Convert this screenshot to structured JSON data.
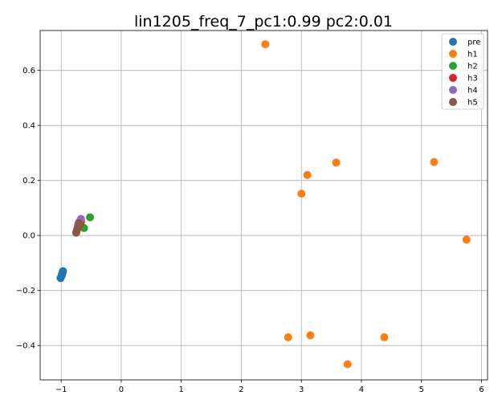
{
  "chart_data": {
    "type": "scatter",
    "title": "lin1205_freq_7_pc1:0.99 pc2:0.01",
    "xlabel": "",
    "ylabel": "",
    "xlim": [
      -1.35,
      6.1
    ],
    "ylim": [
      -0.525,
      0.745
    ],
    "xticks": [
      -1,
      0,
      1,
      2,
      3,
      4,
      5,
      6
    ],
    "yticks": [
      -0.4,
      -0.2,
      0.0,
      0.2,
      0.4,
      0.6
    ],
    "xtick_labels": [
      "−1",
      "0",
      "1",
      "2",
      "3",
      "4",
      "5",
      "6"
    ],
    "ytick_labels": [
      "−0.4",
      "−0.2",
      "0.0",
      "0.2",
      "0.4",
      "0.6"
    ],
    "grid": true,
    "legend_position": "top-right",
    "series": [
      {
        "name": "pre",
        "color": "#1f77b4",
        "points": [
          [
            -1.01,
            -0.155
          ],
          [
            -1.0,
            -0.15
          ],
          [
            -0.99,
            -0.145
          ],
          [
            -0.985,
            -0.14
          ],
          [
            -0.98,
            -0.137
          ],
          [
            -0.975,
            -0.133
          ],
          [
            -0.97,
            -0.13
          ]
        ]
      },
      {
        "name": "h1",
        "color": "#ff7f0e",
        "points": [
          [
            2.4,
            0.695
          ],
          [
            3.58,
            0.265
          ],
          [
            5.21,
            0.267
          ],
          [
            3.1,
            0.22
          ],
          [
            3.0,
            0.152
          ],
          [
            5.75,
            -0.015
          ],
          [
            2.78,
            -0.37
          ],
          [
            3.15,
            -0.363
          ],
          [
            4.38,
            -0.37
          ],
          [
            3.77,
            -0.468
          ]
        ]
      },
      {
        "name": "h2",
        "color": "#2ca02c",
        "points": [
          [
            -0.52,
            0.066
          ],
          [
            -0.62,
            0.027
          ],
          [
            -0.68,
            0.04
          ]
        ]
      },
      {
        "name": "h3",
        "color": "#d62728",
        "points": [
          [
            -0.67,
            0.05
          ],
          [
            -0.7,
            0.04
          ],
          [
            -0.72,
            0.03
          ]
        ]
      },
      {
        "name": "h4",
        "color": "#9467bd",
        "points": [
          [
            -0.67,
            0.06
          ],
          [
            -0.69,
            0.052
          ],
          [
            -0.71,
            0.045
          ]
        ]
      },
      {
        "name": "h5",
        "color": "#8c564b",
        "points": [
          [
            -0.7,
            0.045
          ],
          [
            -0.72,
            0.035
          ],
          [
            -0.73,
            0.025
          ],
          [
            -0.74,
            0.018
          ],
          [
            -0.75,
            0.01
          ]
        ]
      }
    ]
  }
}
